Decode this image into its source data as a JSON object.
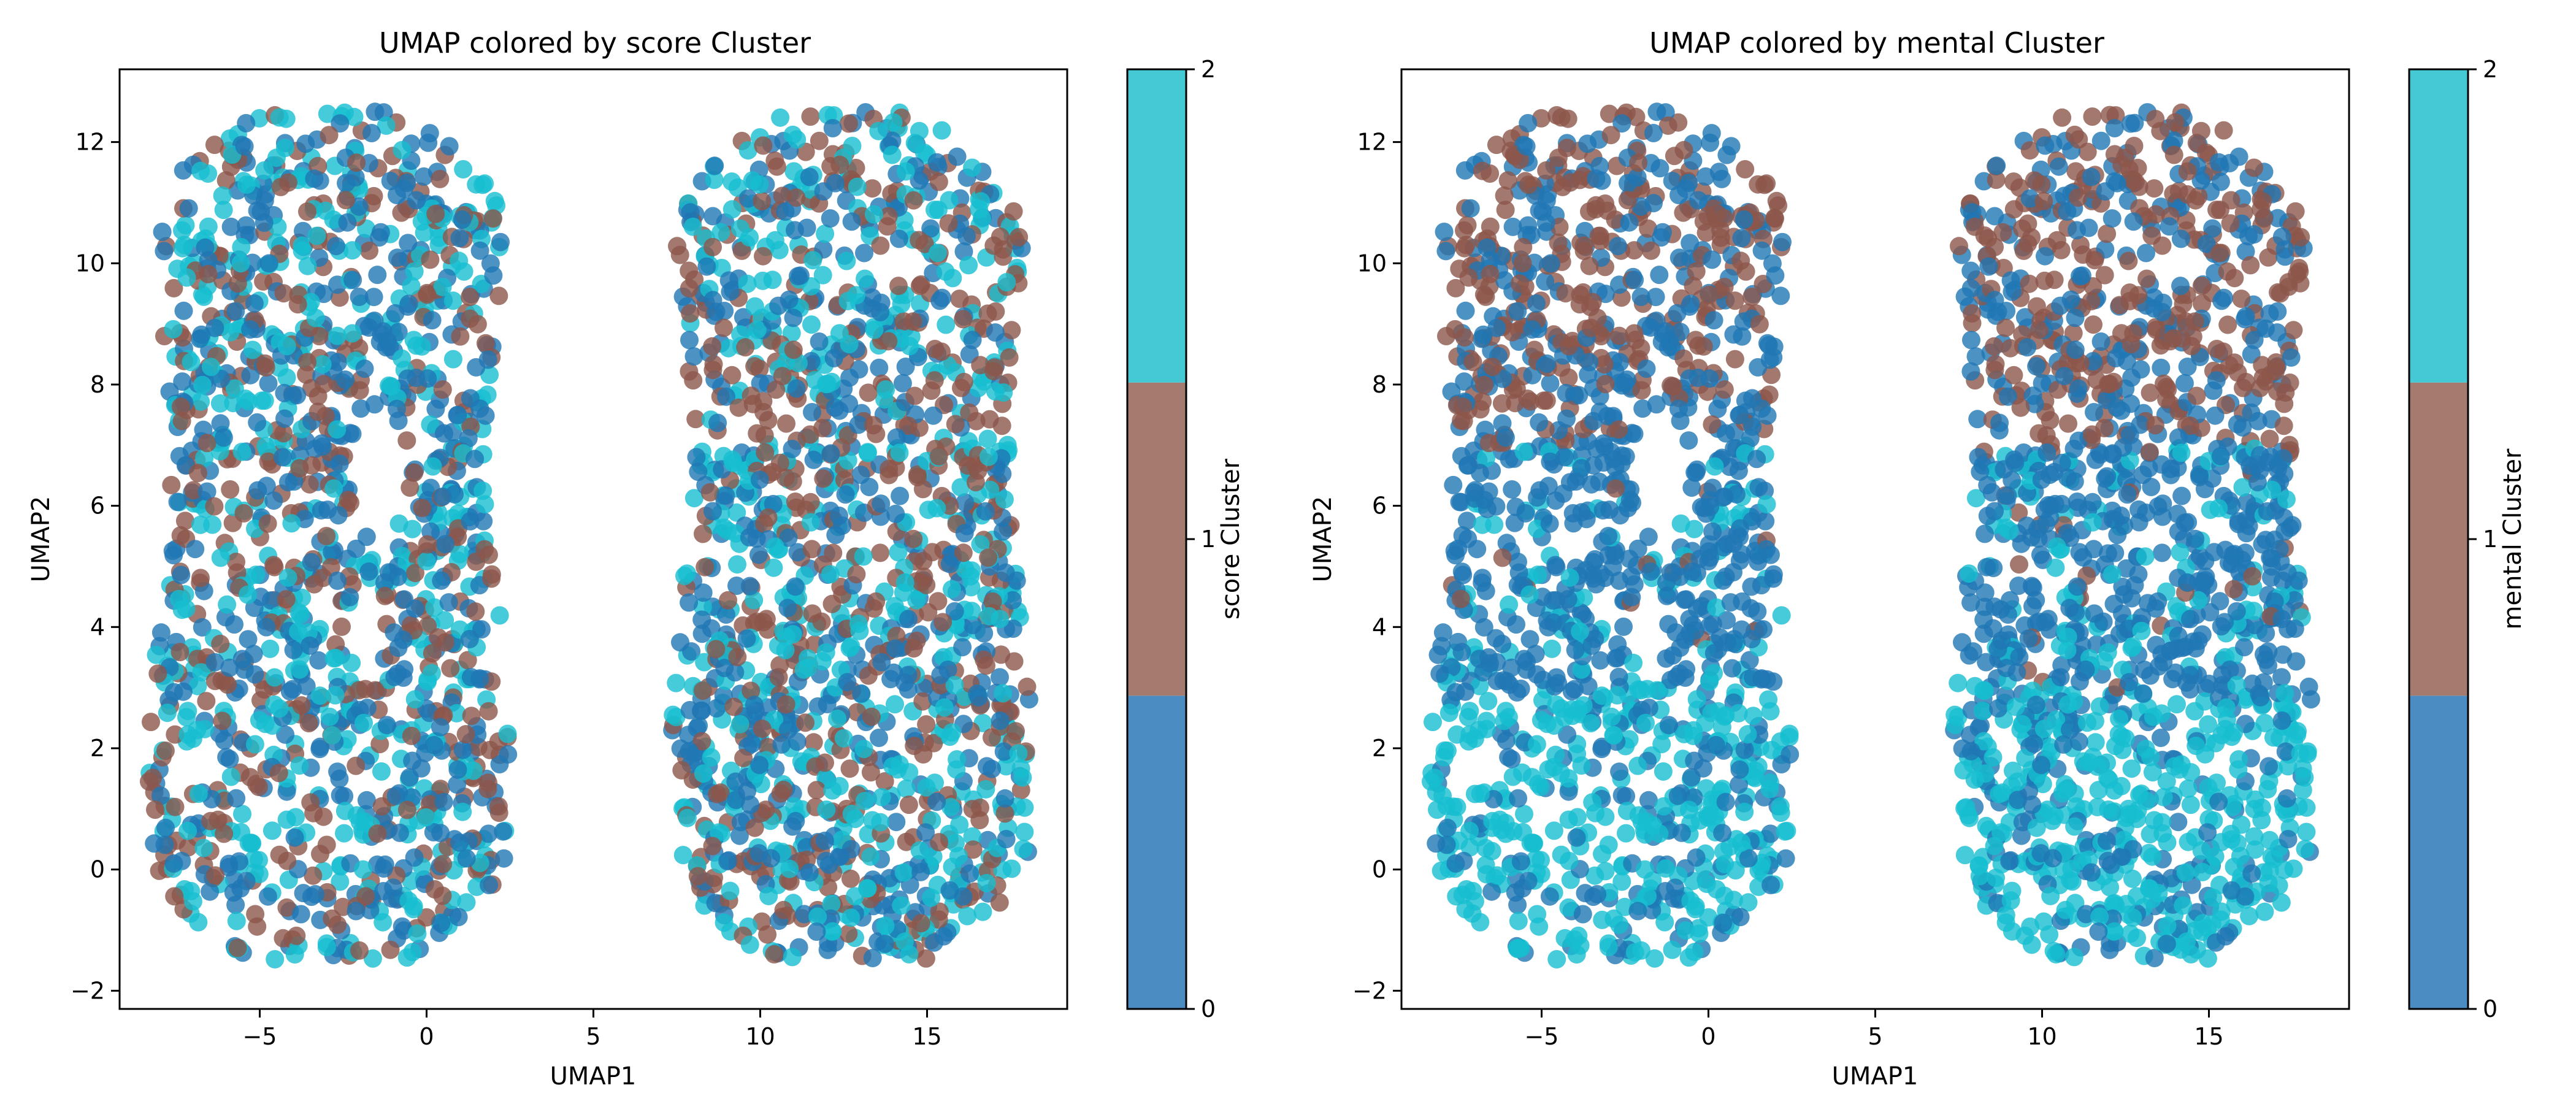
{
  "chart_data": [
    {
      "type": "scatter",
      "title": "UMAP colored by score Cluster",
      "xlabel": "UMAP1",
      "ylabel": "UMAP2",
      "xlim": [
        -9.2,
        19.2
      ],
      "ylim": [
        -2.3,
        13.2
      ],
      "xticks": [
        -5,
        0,
        5,
        10,
        15
      ],
      "yticks": [
        -2,
        0,
        2,
        4,
        6,
        8,
        10,
        12
      ],
      "xtick_labels": [
        "−5",
        "0",
        "5",
        "10",
        "15"
      ],
      "ytick_labels": [
        "−2",
        "0",
        "2",
        "4",
        "6",
        "8",
        "10",
        "12"
      ],
      "grid": false,
      "color_variable": "score Cluster",
      "colorbar": {
        "label": "score Cluster",
        "ticks": [
          0,
          1,
          2
        ],
        "tick_labels": [
          "0",
          "1",
          "2"
        ],
        "colors": [
          "#4b8dc2",
          "#a57b6f",
          "#45c9d4"
        ]
      },
      "point_colors": [
        "#1f77b4",
        "#8c564b",
        "#17becf"
      ],
      "clusters_by_region": {
        "all": {
          "0": 0.34,
          "1": 0.3,
          "2": 0.36
        }
      },
      "point_groups": [
        {
          "name": "left-group",
          "x_range": [
            -8.0,
            2.2
          ],
          "y_range": [
            -1.5,
            12.5
          ]
        },
        {
          "name": "right-group",
          "x_range": [
            7.5,
            18.0
          ],
          "y_range": [
            -1.5,
            12.5
          ]
        }
      ],
      "approx_point_count": 3000
    },
    {
      "type": "scatter",
      "title": "UMAP colored by mental Cluster",
      "xlabel": "UMAP1",
      "ylabel": "UMAP2",
      "xlim": [
        -9.2,
        19.2
      ],
      "ylim": [
        -2.3,
        13.2
      ],
      "xticks": [
        -5,
        0,
        5,
        10,
        15
      ],
      "yticks": [
        -2,
        0,
        2,
        4,
        6,
        8,
        10,
        12
      ],
      "xtick_labels": [
        "−5",
        "0",
        "5",
        "10",
        "15"
      ],
      "ytick_labels": [
        "−2",
        "0",
        "2",
        "4",
        "6",
        "8",
        "10",
        "12"
      ],
      "grid": false,
      "color_variable": "mental Cluster",
      "colorbar": {
        "label": "mental Cluster",
        "ticks": [
          0,
          1,
          2
        ],
        "tick_labels": [
          "0",
          "1",
          "2"
        ],
        "colors": [
          "#4b8dc2",
          "#a57b6f",
          "#45c9d4"
        ]
      },
      "point_colors": [
        "#1f77b4",
        "#8c564b",
        "#17becf"
      ],
      "clusters_by_region": {
        "upper_y_above_7": {
          "0": 0.45,
          "1": 0.55,
          "2": 0.0
        },
        "middle_y_3_to_7": {
          "0": 0.75,
          "1": 0.05,
          "2": 0.2
        },
        "lower_y_below_3": {
          "0": 0.3,
          "1": 0.0,
          "2": 0.7
        }
      },
      "point_groups": [
        {
          "name": "left-group",
          "x_range": [
            -8.0,
            2.2
          ],
          "y_range": [
            -1.5,
            12.5
          ]
        },
        {
          "name": "right-group",
          "x_range": [
            7.5,
            18.0
          ],
          "y_range": [
            -1.5,
            12.5
          ]
        }
      ],
      "approx_point_count": 3000
    }
  ]
}
